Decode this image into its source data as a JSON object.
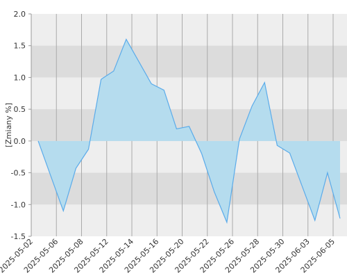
{
  "chart_data": {
    "type": "area",
    "y_label": "[Zmiany %]",
    "categories": [
      "2025-05-02",
      null,
      "2025-05-06",
      null,
      "2025-05-08",
      null,
      "2025-05-12",
      null,
      "2025-05-14",
      null,
      "2025-05-16",
      null,
      "2025-05-20",
      null,
      "2025-05-22",
      null,
      "2025-05-26",
      null,
      "2025-05-28",
      null,
      "2025-05-30",
      null,
      "2025-06-03",
      null,
      "2025-06-05"
    ],
    "values": [
      0.0,
      -0.55,
      -1.1,
      -0.43,
      -0.13,
      0.97,
      1.1,
      1.6,
      1.25,
      0.9,
      0.8,
      0.19,
      0.23,
      -0.2,
      -0.8,
      -1.28,
      0.03,
      0.55,
      0.92,
      -0.07,
      -0.19,
      -0.72,
      -1.25,
      -0.5,
      -1.22
    ],
    "color": "#5aabea",
    "fill": "#b5dcee",
    "ylim": [
      -1.5,
      2.0
    ],
    "yticks": [
      {
        "value": -1.5,
        "label": "-1.5"
      },
      {
        "value": -1.0,
        "label": "-1.0"
      },
      {
        "value": -0.5,
        "label": "-0.5"
      },
      {
        "value": 0.0,
        "label": "0.0"
      },
      {
        "value": 0.5,
        "label": "0.5"
      },
      {
        "value": 1.0,
        "label": "1.0"
      },
      {
        "value": 1.5,
        "label": "1.5"
      },
      {
        "value": 2.0,
        "label": "2.0"
      }
    ],
    "grid": true
  }
}
